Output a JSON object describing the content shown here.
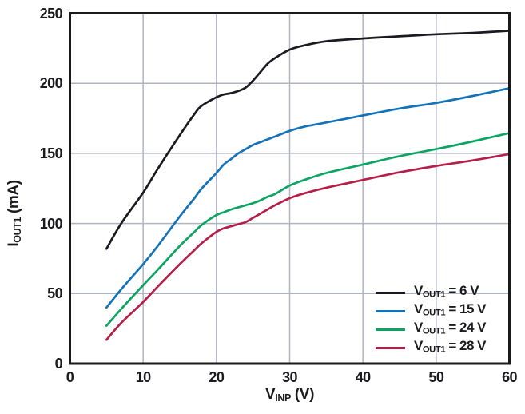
{
  "chart_data": {
    "type": "line",
    "title": "",
    "xlabel": {
      "pre": "V",
      "sub": "INP",
      "post": " (V)"
    },
    "ylabel": {
      "pre": "I",
      "sub": "OUT1",
      "post": " (mA)"
    },
    "xlim": [
      0,
      60
    ],
    "ylim": [
      0,
      250
    ],
    "xticks": [
      0,
      10,
      20,
      30,
      40,
      50,
      60
    ],
    "yticks": [
      0,
      50,
      100,
      150,
      200,
      250
    ],
    "grid": "on",
    "legend_position": "inside-bottom-right",
    "x": [
      5,
      7,
      10,
      12,
      15,
      17,
      18,
      20,
      21,
      22,
      23,
      24,
      25,
      26,
      27,
      28,
      30,
      32,
      35,
      40,
      45,
      50,
      55,
      60
    ],
    "series": [
      {
        "name": "VOUT1 = 6 V",
        "label": {
          "pre": "V",
          "sub": "OUT1",
          "post": " = 6 V"
        },
        "color": "#1a1a20",
        "values": [
          82,
          100,
          122,
          139,
          163,
          178,
          184,
          190,
          192,
          193,
          194.5,
          197,
          202,
          208,
          214,
          218,
          224,
          227,
          230,
          232,
          233.5,
          235,
          236,
          237.5
        ]
      },
      {
        "name": "VOUT1 = 15 V",
        "label": {
          "pre": "V",
          "sub": "OUT1",
          "post": " = 15 V"
        },
        "color": "#1472b8",
        "values": [
          40,
          53,
          71,
          84,
          105,
          118,
          125,
          136,
          142,
          146,
          150,
          153,
          156,
          158,
          160,
          162,
          166,
          169,
          172,
          177,
          182,
          186,
          191,
          196.5
        ]
      },
      {
        "name": "VOUT1 = 24 V",
        "label": {
          "pre": "V",
          "sub": "OUT1",
          "post": " = 24 V"
        },
        "color": "#0da463",
        "values": [
          27,
          39,
          56,
          67,
          84,
          94,
          99,
          106,
          108,
          110,
          111.5,
          113,
          114.5,
          116.5,
          119,
          121,
          127,
          131,
          136,
          142,
          148,
          153,
          158.5,
          164.5
        ]
      },
      {
        "name": "VOUT1 = 28 V",
        "label": {
          "pre": "V",
          "sub": "OUT1",
          "post": " = 28 V"
        },
        "color": "#b41e48",
        "values": [
          17,
          29,
          44,
          55,
          71,
          81,
          86,
          94,
          96.5,
          98,
          99.5,
          101,
          104,
          107,
          110,
          113,
          118,
          121.5,
          125.5,
          131,
          136.5,
          141,
          145,
          149.5
        ]
      }
    ],
    "colors": {
      "background": "#ffffff",
      "grid": "#b0b5c2",
      "axis": "#1a1a1a"
    }
  }
}
